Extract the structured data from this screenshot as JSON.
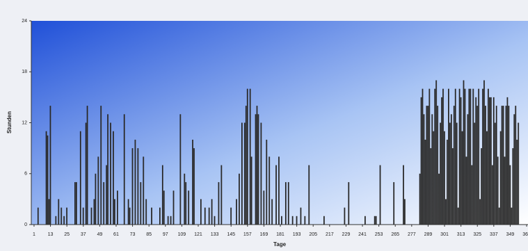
{
  "chart_data": {
    "type": "bar",
    "x_label": "Tage",
    "y_label": "Stunden",
    "x": [
      4,
      10,
      11,
      12,
      13,
      17,
      19,
      21,
      23,
      25,
      31,
      32,
      35,
      37,
      39,
      40,
      43,
      45,
      46,
      48,
      50,
      52,
      54,
      55,
      57,
      59,
      60,
      62,
      67,
      70,
      71,
      73,
      75,
      77,
      79,
      81,
      83,
      87,
      93,
      95,
      96,
      99,
      101,
      103,
      108,
      111,
      112,
      114,
      117,
      118,
      123,
      126,
      129,
      131,
      133,
      136,
      138,
      145,
      149,
      151,
      153,
      155,
      156,
      157,
      159,
      160,
      163,
      164,
      165,
      167,
      169,
      171,
      173,
      175,
      178,
      180,
      182,
      185,
      187,
      190,
      193,
      196,
      199,
      202,
      213,
      228,
      231,
      243,
      250,
      251,
      254,
      264,
      271,
      272,
      283,
      284,
      285,
      286,
      287,
      288,
      289,
      290,
      291,
      292,
      293,
      294,
      295,
      296,
      297,
      298,
      299,
      300,
      301,
      302,
      303,
      304,
      305,
      306,
      307,
      308,
      309,
      310,
      311,
      312,
      313,
      314,
      315,
      316,
      317,
      318,
      319,
      320,
      321,
      322,
      323,
      324,
      325,
      326,
      327,
      328,
      329,
      330,
      331,
      332,
      333,
      334,
      335,
      336,
      337,
      338,
      339,
      340,
      341,
      342,
      343,
      344,
      345,
      346,
      347,
      348,
      349,
      350,
      351,
      352,
      353,
      354,
      355
    ],
    "values": [
      2,
      11,
      10.5,
      3,
      14,
      1,
      3,
      2,
      1,
      2,
      5,
      5,
      11,
      2,
      12,
      14,
      2,
      3,
      6,
      8,
      14,
      5,
      7,
      13,
      12,
      11,
      3,
      4,
      13,
      3,
      2,
      9,
      10,
      9,
      5,
      8,
      3,
      2,
      2,
      7,
      4,
      1,
      1,
      4,
      13,
      6,
      5,
      4,
      10,
      9,
      3,
      2,
      2,
      3,
      1,
      5,
      7,
      2,
      3,
      6,
      12,
      12,
      14,
      16,
      16,
      8,
      13,
      14,
      13,
      12,
      4,
      10,
      8,
      3,
      7,
      8,
      1,
      5,
      5,
      1,
      1,
      2,
      1,
      7,
      1,
      2,
      5,
      1,
      1,
      1,
      7,
      5,
      7,
      3,
      6,
      15,
      16,
      13,
      10,
      14,
      14,
      16,
      9,
      13,
      11,
      16,
      17,
      14,
      6,
      12,
      15,
      16,
      11,
      3,
      10,
      16,
      12,
      13,
      9,
      14,
      16,
      12,
      2,
      16,
      15,
      11,
      17,
      16,
      8,
      13,
      16,
      16,
      7,
      16,
      12,
      15,
      14,
      16,
      3,
      9,
      16,
      17,
      14,
      11,
      16,
      15,
      15,
      7,
      15,
      12,
      14,
      8,
      2,
      11,
      14,
      14,
      8,
      14,
      15,
      14,
      7,
      2,
      9,
      13,
      14,
      10,
      12
    ],
    "xlim": [
      -1,
      362
    ],
    "ylim": [
      0,
      24
    ],
    "xticks": [
      1,
      13,
      25,
      37,
      49,
      61,
      73,
      85,
      97,
      109,
      121,
      133,
      145,
      157,
      169,
      181,
      193,
      205,
      217,
      229,
      241,
      253,
      265,
      277,
      289,
      301,
      313,
      325,
      337,
      349,
      361
    ],
    "yticks": [
      0,
      6,
      12,
      18,
      24
    ]
  }
}
